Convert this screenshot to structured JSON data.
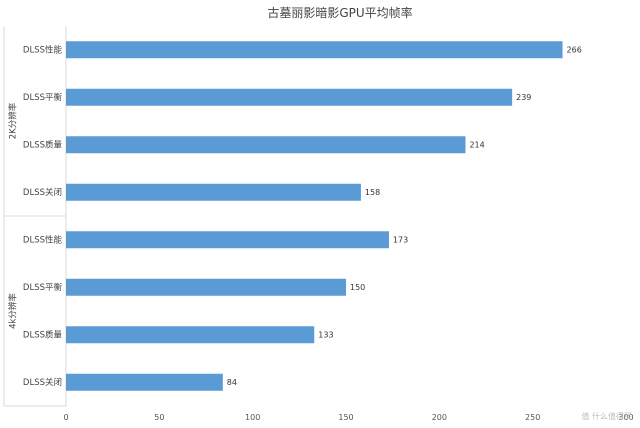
{
  "chart_data": {
    "type": "bar",
    "orientation": "horizontal",
    "title": "古墓丽影暗影GPU平均帧率",
    "groups": [
      {
        "label": "2K分辨率",
        "categories": [
          "DLSS性能",
          "DLSS平衡",
          "DLSS质量",
          "DLSS关闭"
        ],
        "values": [
          266,
          239,
          214,
          158
        ]
      },
      {
        "label": "4k分辨率",
        "categories": [
          "DLSS性能",
          "DLSS平衡",
          "DLSS质量",
          "DLSS关闭"
        ],
        "values": [
          173,
          150,
          133,
          84
        ]
      }
    ],
    "xlim": [
      0,
      300
    ],
    "xticks": [
      0,
      50,
      100,
      150,
      200,
      250,
      300
    ],
    "grid": false,
    "bar_color": "#5B9BD5",
    "data_labels": true
  },
  "watermark": "值 什么值得买"
}
